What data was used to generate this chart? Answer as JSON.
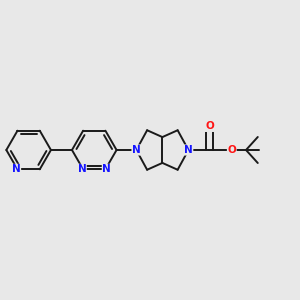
{
  "background_color": "#e8e8e8",
  "bond_color": "#1a1a1a",
  "nitrogen_color": "#1414ff",
  "oxygen_color": "#ff1414",
  "bond_width": 1.4,
  "figsize": [
    3.0,
    3.0
  ],
  "dpi": 100,
  "xlim": [
    0.02,
    0.98
  ],
  "ylim": [
    0.32,
    0.68
  ]
}
